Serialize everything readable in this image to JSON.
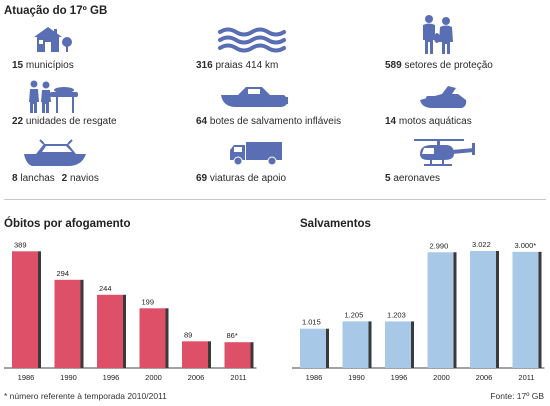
{
  "header": {
    "title": "Atuação do 17º GB"
  },
  "stats": [
    {
      "num": "15",
      "label": "municípios",
      "icon": "house-icon"
    },
    {
      "num": "316",
      "label": "praias 414 km",
      "icon": "waves-icon"
    },
    {
      "num": "589",
      "label": "setores de proteção",
      "icon": "lifeguards-icon"
    },
    {
      "num": "22",
      "label": "unidades de resgate",
      "icon": "stretcher-rescue-icon"
    },
    {
      "num": "64",
      "label": "botes de salvamento infláveis",
      "icon": "inflatable-boat-icon"
    },
    {
      "num": "14",
      "label": "motos aquáticas",
      "icon": "jet-ski-icon"
    },
    {
      "num": "8",
      "label": "lanchas",
      "num2": "2",
      "label2": "navios",
      "icon": "speedboat-icon"
    },
    {
      "num": "69",
      "label": "viaturas de apoio",
      "icon": "truck-icon"
    },
    {
      "num": "5",
      "label": "aeronaves",
      "icon": "helicopter-icon"
    }
  ],
  "colors": {
    "icon": "#5a6fb3",
    "drownings_bar": "#de4f68",
    "rescues_bar": "#a8c8e8",
    "bar_shadow": "#3a3a3a"
  },
  "chart_data": [
    {
      "type": "bar",
      "title": "Óbitos por afogamento",
      "categories": [
        "1986",
        "1990",
        "1996",
        "2000",
        "2006",
        "2011"
      ],
      "values": [
        389,
        294,
        244,
        199,
        89,
        86
      ],
      "value_labels": [
        "389",
        "294",
        "244",
        "199",
        "89",
        "86*"
      ],
      "xlabel": "",
      "ylabel": "",
      "ylim": [
        0,
        400
      ],
      "grid": false,
      "color": "#de4f68"
    },
    {
      "type": "bar",
      "title": "Salvamentos",
      "categories": [
        "1986",
        "1990",
        "1996",
        "2000",
        "2006",
        "2011"
      ],
      "values": [
        1015,
        1205,
        1203,
        2990,
        3022,
        3000
      ],
      "value_labels": [
        "1.015",
        "1.205",
        "1.203",
        "2.990",
        "3.022",
        "3.000*"
      ],
      "xlabel": "",
      "ylabel": "",
      "ylim": [
        0,
        3100
      ],
      "grid": false,
      "color": "#a8c8e8"
    }
  ],
  "footer": {
    "note": "* número referente à temporada 2010/2011",
    "source": "Fonte: 17º GB"
  }
}
